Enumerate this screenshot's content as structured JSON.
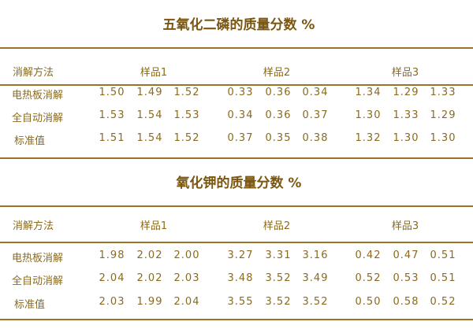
{
  "sections": [
    {
      "title": "五氧化二磷的质量分数 %",
      "header": {
        "method": "消解方法",
        "samples": [
          "样品1",
          "样品2",
          "样品3"
        ]
      },
      "rows": [
        {
          "method": "电热板消解",
          "values": [
            "1.50",
            "1.49",
            "1.52",
            "0.33",
            "0.36",
            "0.34",
            "1.34",
            "1.29",
            "1.33"
          ]
        },
        {
          "method": "全自动消解",
          "values": [
            "1.53",
            "1.54",
            "1.53",
            "0.34",
            "0.36",
            "0.37",
            "1.30",
            "1.33",
            "1.29"
          ]
        },
        {
          "method": "标准值",
          "values": [
            "1.51",
            "1.54",
            "1.52",
            "0.37",
            "0.35",
            "0.38",
            "1.32",
            "1.30",
            "1.30"
          ]
        }
      ]
    },
    {
      "title": "氧化钾的质量分数 %",
      "header": {
        "method": "消解方法",
        "samples": [
          "样品1",
          "样品2",
          "样品3"
        ]
      },
      "rows": [
        {
          "method": "电热板消解",
          "values": [
            "1.98",
            "2.02",
            "2.00",
            "3.27",
            "3.31",
            "3.16",
            "0.42",
            "0.47",
            "0.51"
          ]
        },
        {
          "method": "全自动消解",
          "values": [
            "2.04",
            "2.02",
            "2.03",
            "3.48",
            "3.52",
            "3.49",
            "0.52",
            "0.53",
            "0.51"
          ]
        },
        {
          "method": "标准值",
          "values": [
            "2.03",
            "1.99",
            "2.04",
            "3.55",
            "3.52",
            "3.52",
            "0.50",
            "0.58",
            "0.52"
          ]
        }
      ]
    }
  ],
  "colors": {
    "text": "#8a6a1e",
    "title": "#7a5610",
    "rule": "#9a7424"
  }
}
